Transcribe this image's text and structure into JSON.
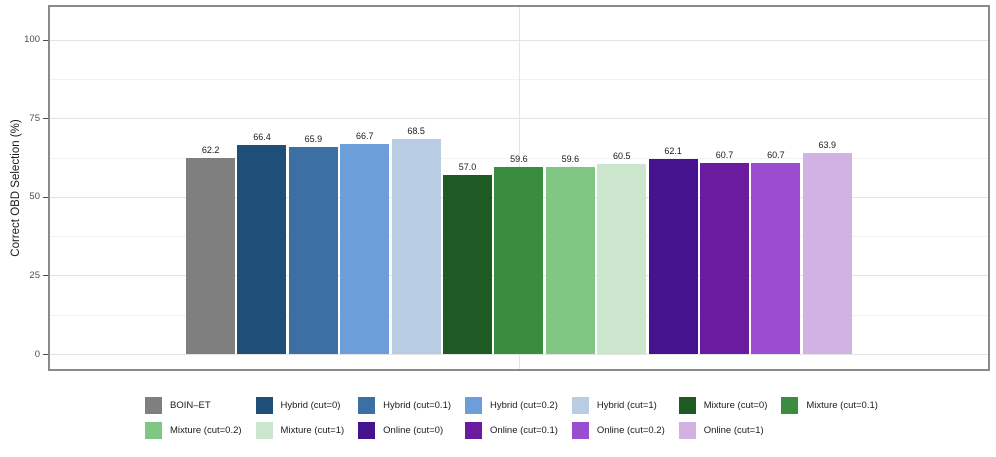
{
  "chart_data": {
    "type": "bar",
    "title": "",
    "xlabel": "",
    "ylabel": "Correct OBD Selection (%)",
    "ylim": [
      0,
      100
    ],
    "yticks": [
      0,
      25,
      50,
      75,
      100
    ],
    "yticks_minor": [
      12.5,
      37.5,
      62.5,
      87.5
    ],
    "grid": "horizontal major+minor, one vertical major line at panel center",
    "legend_position": "bottom, two rows",
    "value_labels_shown": true,
    "series": [
      {
        "name": "BOIN–ET",
        "value": 62.2,
        "label": "62.2",
        "color": "#7f7f7f"
      },
      {
        "name": "Hybrid (cut=0)",
        "value": 66.4,
        "label": "66.4",
        "color": "#1f4e78"
      },
      {
        "name": "Hybrid (cut=0.1)",
        "value": 65.9,
        "label": "65.9",
        "color": "#3c70a4"
      },
      {
        "name": "Hybrid (cut=0.2)",
        "value": 66.7,
        "label": "66.7",
        "color": "#6c9fd9"
      },
      {
        "name": "Hybrid (cut=1)",
        "value": 68.5,
        "label": "68.5",
        "color": "#b8cce4"
      },
      {
        "name": "Mixture (cut=0)",
        "value": 57.0,
        "label": "57.0",
        "color": "#1e5b24"
      },
      {
        "name": "Mixture (cut=0.1)",
        "value": 59.6,
        "label": "59.6",
        "color": "#3a8c3f"
      },
      {
        "name": "Mixture (cut=0.2)",
        "value": 59.6,
        "label": "59.6",
        "color": "#7fc783"
      },
      {
        "name": "Mixture (cut=1)",
        "value": 60.5,
        "label": "60.5",
        "color": "#cbe6cc"
      },
      {
        "name": "Online (cut=0)",
        "value": 62.1,
        "label": "62.1",
        "color": "#45138d"
      },
      {
        "name": "Online (cut=0.1)",
        "value": 60.7,
        "label": "60.7",
        "color": "#6b1b9e"
      },
      {
        "name": "Online (cut=0.2)",
        "value": 60.7,
        "label": "60.7",
        "color": "#9a4ecf"
      },
      {
        "name": "Online (cut=1)",
        "value": 63.9,
        "label": "63.9",
        "color": "#d1b2e3"
      }
    ],
    "legend_rows": [
      [
        0,
        1,
        2,
        3,
        4,
        5,
        6
      ],
      [
        7,
        8,
        9,
        10,
        11,
        12
      ]
    ]
  }
}
